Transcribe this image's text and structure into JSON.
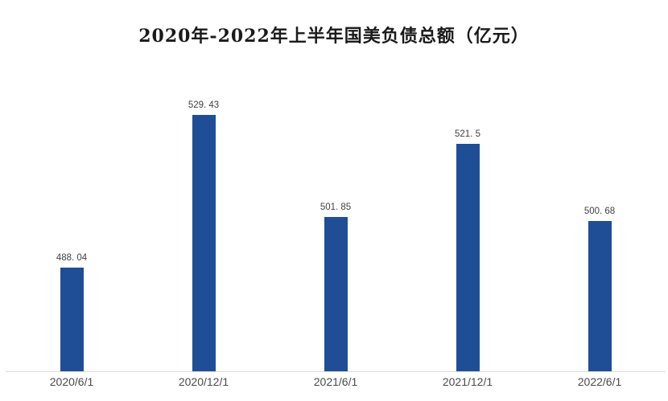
{
  "chart_data": {
    "type": "bar",
    "title": "2020年-2022年上半年国美负债总额（亿元）",
    "categories": [
      "2020/6/1",
      "2020/12/1",
      "2021/6/1",
      "2021/12/1",
      "2022/6/1"
    ],
    "values": [
      488.04,
      529.43,
      501.85,
      521.5,
      500.68
    ],
    "value_labels": [
      "488. 04",
      "529. 43",
      "501. 85",
      "521. 5",
      "500. 68"
    ],
    "xlabel": "",
    "ylabel": "",
    "ylim": [
      460,
      540
    ],
    "grid": false,
    "legend_position": "none",
    "bar_color": "#1F4E96",
    "value_label_color": "#404040",
    "axis_label_color": "#4A4A4A",
    "axis_line_color": "#DADADA",
    "background": "#FFFFFF"
  }
}
